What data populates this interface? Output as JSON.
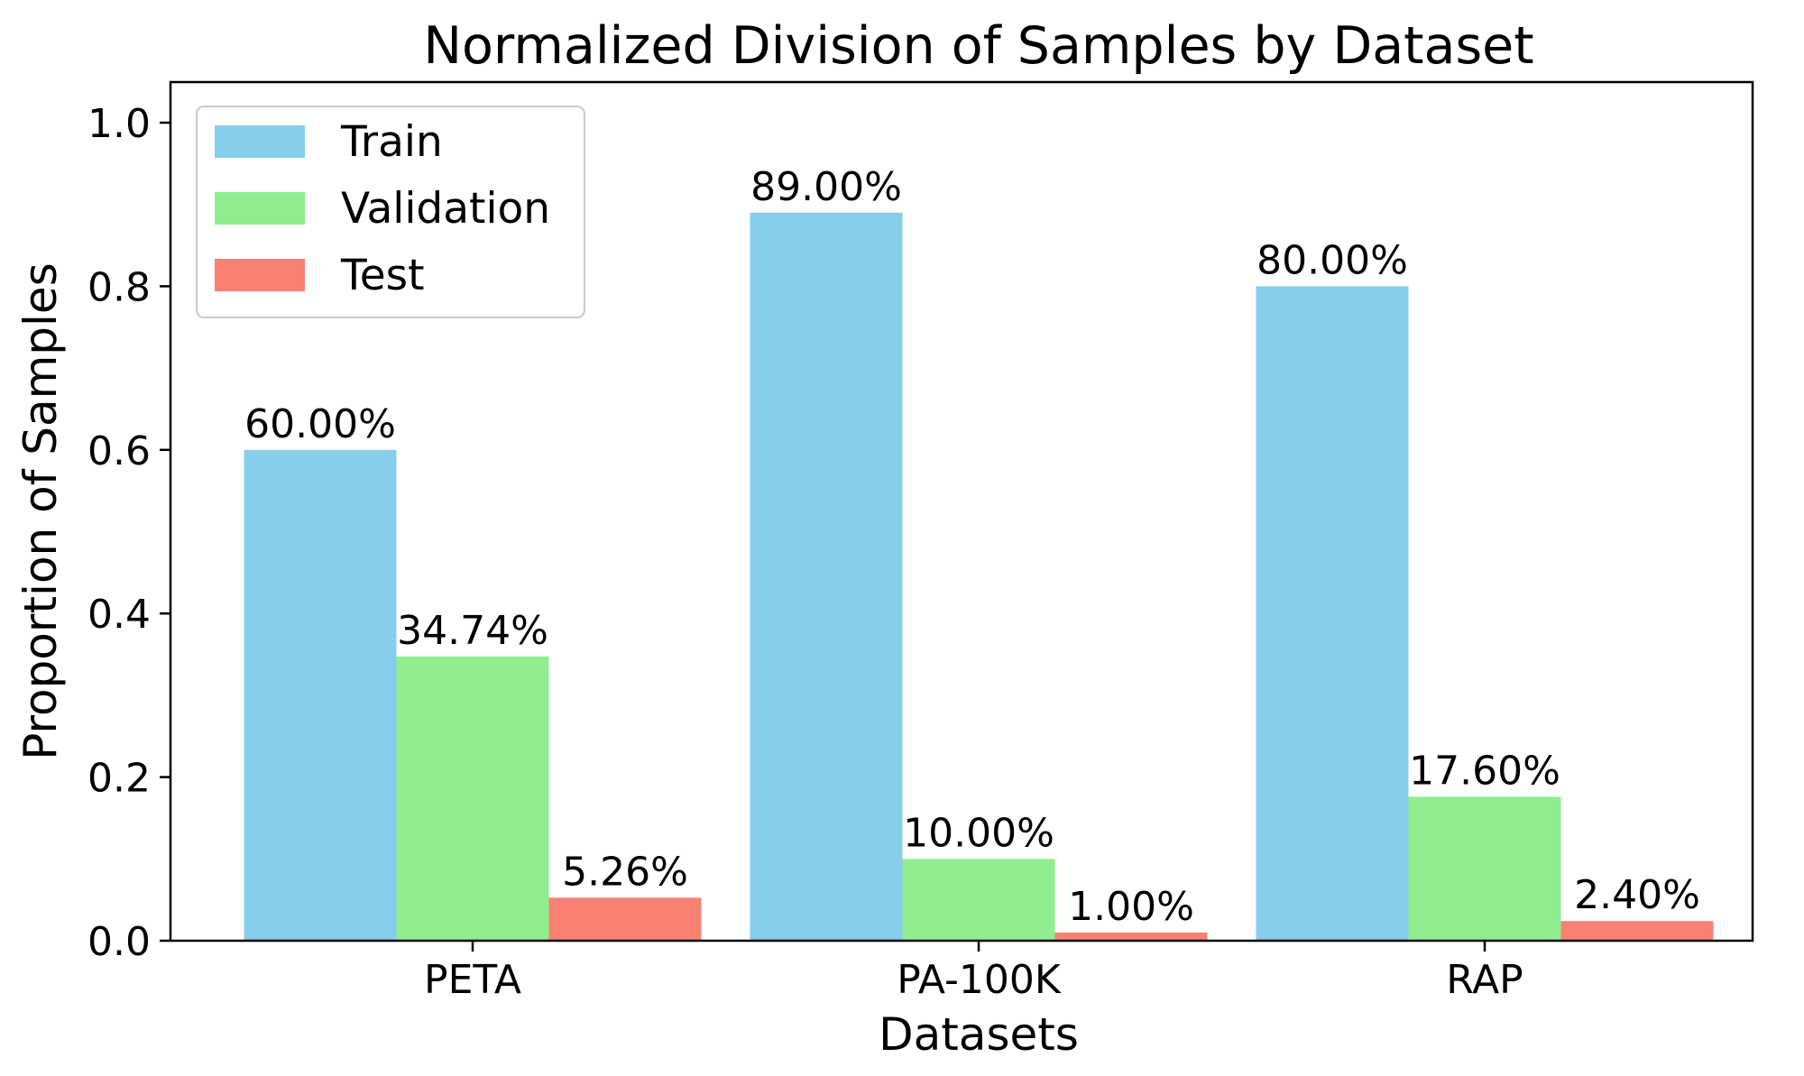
{
  "chart_data": {
    "type": "bar",
    "title": "Normalized Division of Samples by Dataset",
    "xlabel": "Datasets",
    "ylabel": "Proportion of Samples",
    "categories": [
      "PETA",
      "PA-100K",
      "RAP"
    ],
    "series": [
      {
        "name": "Train",
        "color": "#87ceeb",
        "values": [
          0.6,
          0.89,
          0.8
        ],
        "labels": [
          "60.00%",
          "89.00%",
          "80.00%"
        ]
      },
      {
        "name": "Validation",
        "color": "#90ee90",
        "values": [
          0.3474,
          0.1,
          0.176
        ],
        "labels": [
          "34.74%",
          "10.00%",
          "17.60%"
        ]
      },
      {
        "name": "Test",
        "color": "#fa8072",
        "values": [
          0.0526,
          0.01,
          0.024
        ],
        "labels": [
          "5.26%",
          "1.00%",
          "2.40%"
        ]
      }
    ],
    "ylim": [
      0,
      1.05
    ],
    "yticks": [
      0.0,
      0.2,
      0.4,
      0.6,
      0.8,
      1.0
    ],
    "ytick_labels": [
      "0.0",
      "0.2",
      "0.4",
      "0.6",
      "0.8",
      "1.0"
    ],
    "grid": false,
    "legend_position": "top-left"
  }
}
